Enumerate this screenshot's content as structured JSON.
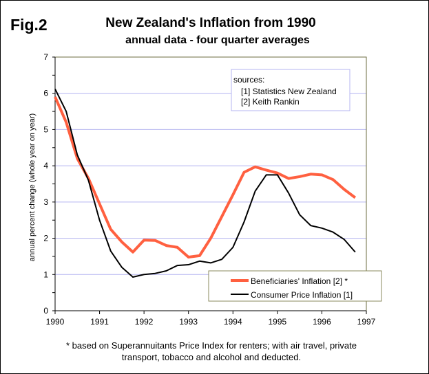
{
  "figure_label": "Fig.2",
  "chart_data": {
    "type": "line",
    "title": "New Zealand's Inflation from 1990",
    "subtitle": "annual data - four quarter averages",
    "xlabel": "",
    "ylabel": "annual percent change  (whole year on year)",
    "xlim": [
      1990,
      1997
    ],
    "ylim": [
      0,
      7
    ],
    "xticks": [
      "1990",
      "1991",
      "1992",
      "1993",
      "1994",
      "1995",
      "1996",
      "1997"
    ],
    "yticks": [
      "0",
      "1",
      "2",
      "3",
      "4",
      "5",
      "6",
      "7"
    ],
    "grid": "horizontal",
    "legend_placement": "bottom-right",
    "x": [
      1990,
      1990.25,
      1990.5,
      1990.75,
      1991,
      1991.25,
      1991.5,
      1991.75,
      1992,
      1992.25,
      1992.5,
      1992.75,
      1993,
      1993.25,
      1993.5,
      1993.75,
      1994,
      1994.25,
      1994.5,
      1994.75,
      1995,
      1995.25,
      1995.5,
      1995.75,
      1996,
      1996.25,
      1996.5,
      1996.75
    ],
    "series": [
      {
        "name": "Beneficiaries' Inflation  [2] *",
        "color": "#ff6040",
        "values": [
          5.9,
          5.2,
          4.2,
          3.65,
          2.95,
          2.25,
          1.9,
          1.62,
          1.95,
          1.94,
          1.8,
          1.75,
          1.48,
          1.52,
          2.0,
          2.6,
          3.2,
          3.82,
          3.97,
          3.88,
          3.8,
          3.65,
          3.7,
          3.77,
          3.75,
          3.62,
          3.35,
          3.12
        ]
      },
      {
        "name": "Consumer Price Inflation  [1]",
        "color": "#000000",
        "values": [
          6.12,
          5.5,
          4.3,
          3.6,
          2.5,
          1.65,
          1.2,
          0.93,
          1.0,
          1.03,
          1.1,
          1.25,
          1.27,
          1.37,
          1.32,
          1.42,
          1.75,
          2.45,
          3.3,
          3.75,
          3.75,
          3.25,
          2.65,
          2.35,
          2.28,
          2.17,
          1.97,
          1.62
        ]
      }
    ],
    "annotations": {
      "sources_heading": "sources:",
      "sources": [
        "[1] Statistics New Zealand",
        "[2] Keith Rankin"
      ]
    }
  },
  "footnote": [
    "* based on Superannuitants Price Index for renters; with air travel, private",
    "transport,  tobacco and alcohol and deducted."
  ]
}
